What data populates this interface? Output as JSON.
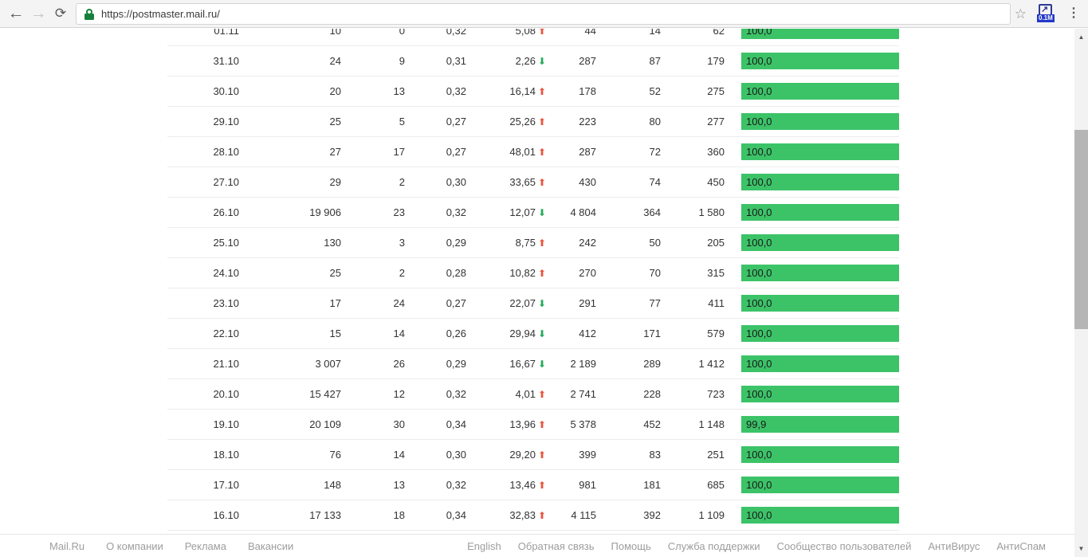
{
  "browser": {
    "url": "https://postmaster.mail.ru/",
    "back_icon": "←",
    "forward_icon": "→",
    "reload_icon": "⟳",
    "bookmark_icon": "☆",
    "extension_arrow": "↗",
    "extension_badge": "0.1M",
    "menu_icon": "⋮"
  },
  "colors": {
    "bar_green": "#3cc368",
    "trend_up": "#e8553c",
    "trend_down": "#25a95b",
    "lock_green": "#15803c"
  },
  "chart_data": {
    "type": "table",
    "columns": [
      "date",
      "sent",
      "complaints",
      "complaint_rate",
      "delta_pct",
      "opens",
      "clicks",
      "unsubscribes",
      "delivered_pct"
    ],
    "rows": [
      {
        "date": "01.11",
        "v1": "10",
        "v2": "0",
        "v3": "0,32",
        "delta": "5,08",
        "dir": "up",
        "v4": "44",
        "v5": "14",
        "v6": "62",
        "bar": "100,0"
      },
      {
        "date": "31.10",
        "v1": "24",
        "v2": "9",
        "v3": "0,31",
        "delta": "2,26",
        "dir": "down",
        "v4": "287",
        "v5": "87",
        "v6": "179",
        "bar": "100,0"
      },
      {
        "date": "30.10",
        "v1": "20",
        "v2": "13",
        "v3": "0,32",
        "delta": "16,14",
        "dir": "up",
        "v4": "178",
        "v5": "52",
        "v6": "275",
        "bar": "100,0"
      },
      {
        "date": "29.10",
        "v1": "25",
        "v2": "5",
        "v3": "0,27",
        "delta": "25,26",
        "dir": "up",
        "v4": "223",
        "v5": "80",
        "v6": "277",
        "bar": "100,0"
      },
      {
        "date": "28.10",
        "v1": "27",
        "v2": "17",
        "v3": "0,27",
        "delta": "48,01",
        "dir": "up",
        "v4": "287",
        "v5": "72",
        "v6": "360",
        "bar": "100,0"
      },
      {
        "date": "27.10",
        "v1": "29",
        "v2": "2",
        "v3": "0,30",
        "delta": "33,65",
        "dir": "up",
        "v4": "430",
        "v5": "74",
        "v6": "450",
        "bar": "100,0"
      },
      {
        "date": "26.10",
        "v1": "19 906",
        "v2": "23",
        "v3": "0,32",
        "delta": "12,07",
        "dir": "down",
        "v4": "4 804",
        "v5": "364",
        "v6": "1 580",
        "bar": "100,0"
      },
      {
        "date": "25.10",
        "v1": "130",
        "v2": "3",
        "v3": "0,29",
        "delta": "8,75",
        "dir": "up",
        "v4": "242",
        "v5": "50",
        "v6": "205",
        "bar": "100,0"
      },
      {
        "date": "24.10",
        "v1": "25",
        "v2": "2",
        "v3": "0,28",
        "delta": "10,82",
        "dir": "up",
        "v4": "270",
        "v5": "70",
        "v6": "315",
        "bar": "100,0"
      },
      {
        "date": "23.10",
        "v1": "17",
        "v2": "24",
        "v3": "0,27",
        "delta": "22,07",
        "dir": "down",
        "v4": "291",
        "v5": "77",
        "v6": "411",
        "bar": "100,0"
      },
      {
        "date": "22.10",
        "v1": "15",
        "v2": "14",
        "v3": "0,26",
        "delta": "29,94",
        "dir": "down",
        "v4": "412",
        "v5": "171",
        "v6": "579",
        "bar": "100,0"
      },
      {
        "date": "21.10",
        "v1": "3 007",
        "v2": "26",
        "v3": "0,29",
        "delta": "16,67",
        "dir": "down",
        "v4": "2 189",
        "v5": "289",
        "v6": "1 412",
        "bar": "100,0"
      },
      {
        "date": "20.10",
        "v1": "15 427",
        "v2": "12",
        "v3": "0,32",
        "delta": "4,01",
        "dir": "up",
        "v4": "2 741",
        "v5": "228",
        "v6": "723",
        "bar": "100,0"
      },
      {
        "date": "19.10",
        "v1": "20 109",
        "v2": "30",
        "v3": "0,34",
        "delta": "13,96",
        "dir": "up",
        "v4": "5 378",
        "v5": "452",
        "v6": "1 148",
        "bar": "99,9"
      },
      {
        "date": "18.10",
        "v1": "76",
        "v2": "14",
        "v3": "0,30",
        "delta": "29,20",
        "dir": "up",
        "v4": "399",
        "v5": "83",
        "v6": "251",
        "bar": "100,0"
      },
      {
        "date": "17.10",
        "v1": "148",
        "v2": "13",
        "v3": "0,32",
        "delta": "13,46",
        "dir": "up",
        "v4": "981",
        "v5": "181",
        "v6": "685",
        "bar": "100,0"
      },
      {
        "date": "16.10",
        "v1": "17 133",
        "v2": "18",
        "v3": "0,34",
        "delta": "32,83",
        "dir": "up",
        "v4": "4 115",
        "v5": "392",
        "v6": "1 109",
        "bar": "100,0"
      }
    ]
  },
  "footer": {
    "left_links": [
      "Mail.Ru",
      "О компании",
      "Реклама",
      "Вакансии"
    ],
    "right_links": [
      "English",
      "Обратная связь",
      "Помощь",
      "Служба поддержки",
      "Сообщество пользователей",
      "АнтиВирус",
      "АнтиСпам"
    ]
  },
  "scrollbar": {
    "up_icon": "▲",
    "down_icon": "▼"
  }
}
